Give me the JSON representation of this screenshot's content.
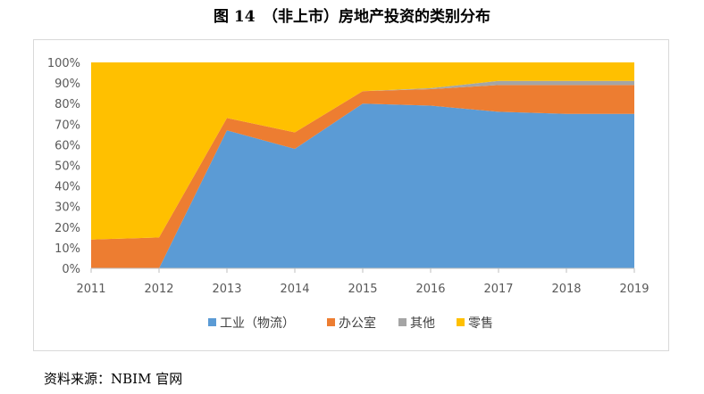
{
  "figure_title": "图 14　（非上市）房地产投资的类别分布",
  "source": "资料来源：NBIM 官网",
  "chart_data": {
    "type": "area",
    "stacked": true,
    "percent": true,
    "title": "",
    "xlabel": "",
    "ylabel": "",
    "x": [
      "2011",
      "2012",
      "2013",
      "2014",
      "2015",
      "2016",
      "2017",
      "2018",
      "2019"
    ],
    "y_ticks": [
      "0%",
      "10%",
      "20%",
      "30%",
      "40%",
      "50%",
      "60%",
      "70%",
      "80%",
      "90%",
      "100%"
    ],
    "ylim": [
      0,
      100
    ],
    "grid": false,
    "legend_position": "bottom",
    "series": [
      {
        "name": "工业（物流）",
        "color": "#5B9BD5",
        "values": [
          0,
          0,
          67,
          58,
          80,
          79,
          76,
          75,
          75
        ]
      },
      {
        "name": "办公室",
        "color": "#ED7D31",
        "values": [
          14,
          15,
          6,
          8,
          6,
          8,
          13,
          14,
          14
        ]
      },
      {
        "name": "其他",
        "color": "#A5A5A5",
        "values": [
          0,
          0,
          0,
          0,
          0,
          0.5,
          2,
          2,
          2
        ]
      },
      {
        "name": "零售",
        "color": "#FFC000",
        "values": [
          86,
          85,
          27,
          34,
          14,
          12.5,
          9,
          9,
          9
        ]
      }
    ]
  }
}
